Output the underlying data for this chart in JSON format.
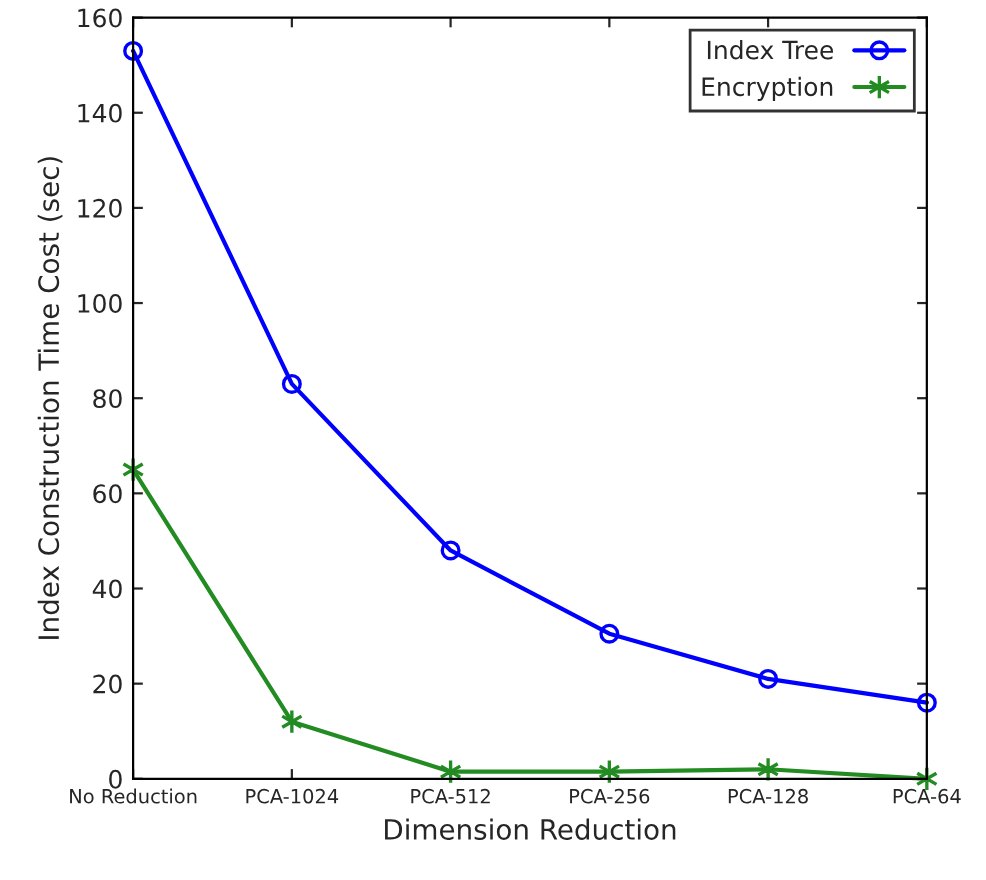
{
  "chart_data": {
    "type": "line",
    "xlabel": "Dimension Reduction",
    "ylabel": "Index Construction Time Cost (sec)",
    "categories": [
      "No Reduction",
      "PCA-1024",
      "PCA-512",
      "PCA-256",
      "PCA-128",
      "PCA-64"
    ],
    "series": [
      {
        "name": "Index Tree",
        "color": "#0000ff",
        "marker": "circle",
        "values": [
          153,
          83,
          48,
          30.5,
          21,
          16
        ]
      },
      {
        "name": "Encryption",
        "color": "#228b22",
        "marker": "cross",
        "values": [
          65,
          12,
          1.5,
          1.5,
          2,
          0
        ]
      }
    ],
    "ylim": [
      0,
      160
    ],
    "yticks": [
      0,
      20,
      40,
      60,
      80,
      100,
      120,
      140,
      160
    ],
    "grid": false,
    "legend": "top right",
    "line_style": "solid"
  }
}
